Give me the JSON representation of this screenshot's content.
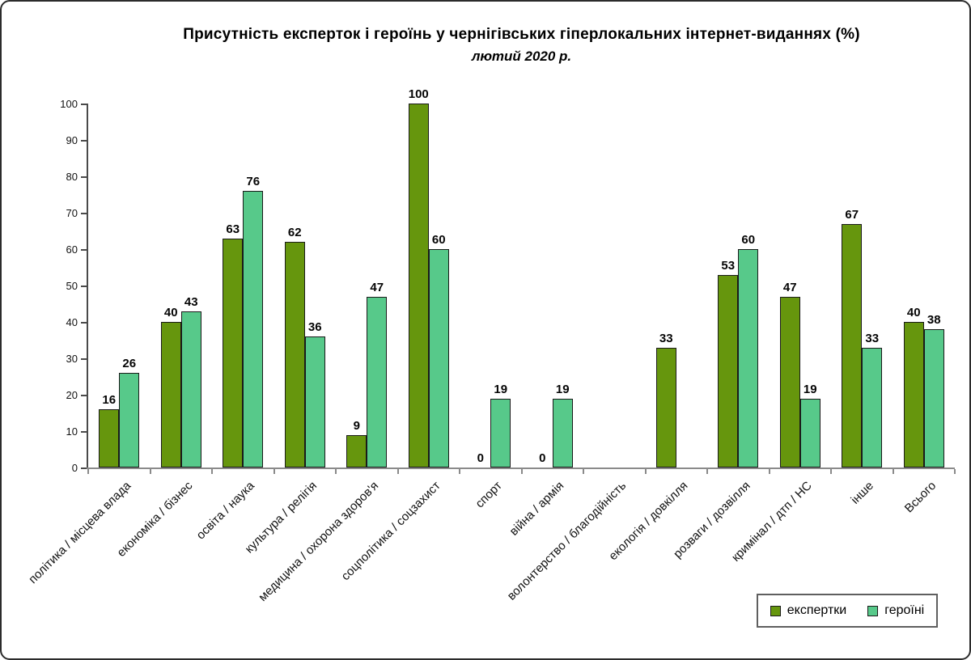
{
  "title": "Присутність  експерток  і  героїнь  у  чернігівських  гіперлокальних  інтернет-виданнях  (%)",
  "subtitle": "лютий 2020 р.",
  "legend": {
    "items": [
      {
        "label": "експертки",
        "color": "#66960D"
      },
      {
        "label": "героїні",
        "color": "#57C98A"
      }
    ]
  },
  "chart_data": {
    "type": "bar",
    "title": "Присутність експерток і героїнь у чернігівських гіперлокальних інтернет-виданнях (%)",
    "subtitle": "лютий 2020 р.",
    "xlabel": "",
    "ylabel": "",
    "ylim": [
      0,
      100
    ],
    "yticks": [
      0,
      10,
      20,
      30,
      40,
      50,
      60,
      70,
      80,
      90,
      100
    ],
    "grid": false,
    "legend_position": "bottom-right",
    "bar_value_labels": true,
    "categories": [
      "політика / місцева влада",
      "економіка / бізнес",
      "освіта / наука",
      "культура / релігія",
      "медицина / охорона здоров'я",
      "соцполітика / соцзахист",
      "спорт",
      "війна / армія",
      "волонтерство / благодійність",
      "екологія / довкілля",
      "розваги / дозвілля",
      "кримінал / дтп / НС",
      "інше",
      "Всього"
    ],
    "series": [
      {
        "name": "експертки",
        "color": "#66960D",
        "values": [
          16,
          40,
          63,
          62,
          9,
          100,
          0,
          0,
          null,
          33,
          53,
          47,
          67,
          40
        ]
      },
      {
        "name": "героїні",
        "color": "#57C98A",
        "values": [
          26,
          43,
          76,
          36,
          47,
          60,
          19,
          19,
          null,
          null,
          60,
          19,
          33,
          38
        ]
      }
    ]
  }
}
